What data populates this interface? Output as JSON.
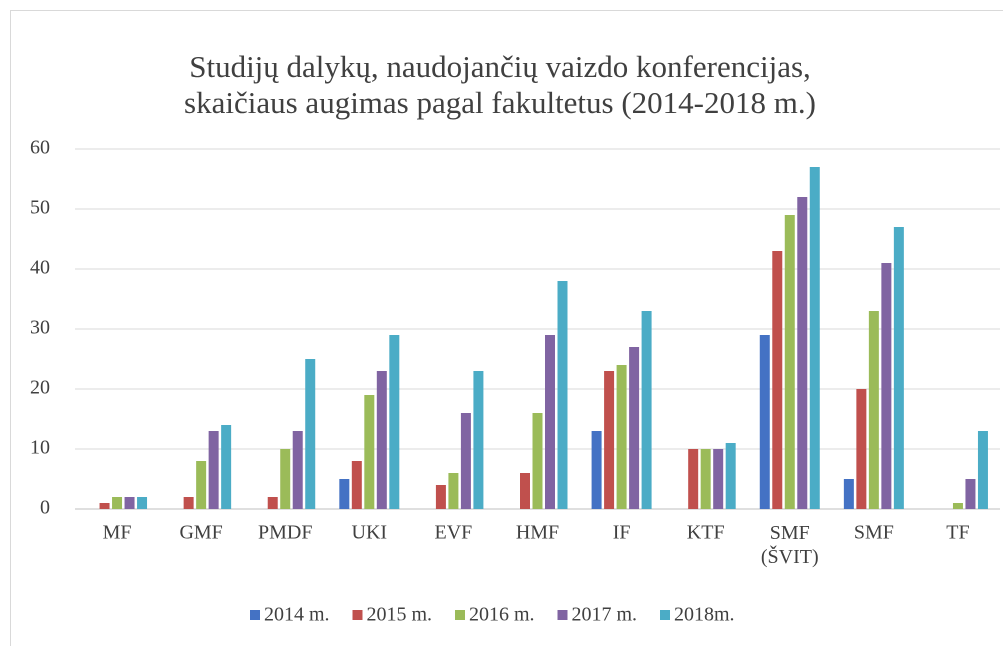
{
  "chart_data": {
    "type": "bar",
    "title": "Studijų dalykų, naudojančių vaizdo konferencijas,\nskaičiaus augimas pagal fakultetus (2014-2018 m.)",
    "categories": [
      "MF",
      "GMF",
      "PMDF",
      "UKI",
      "EVF",
      "HMF",
      "IF",
      "KTF",
      "SMF\n(ŠVIT)",
      "SMF",
      "TF"
    ],
    "series": [
      {
        "name": "2014 m.",
        "color": "#4472c4",
        "values": [
          0,
          0,
          0,
          5,
          0,
          0,
          13,
          0,
          29,
          5,
          0
        ]
      },
      {
        "name": "2015 m.",
        "color": "#c0504d",
        "values": [
          1,
          2,
          2,
          8,
          4,
          6,
          23,
          10,
          43,
          20,
          0
        ]
      },
      {
        "name": "2016 m.",
        "color": "#9bbb59",
        "values": [
          2,
          8,
          10,
          19,
          6,
          16,
          24,
          10,
          49,
          33,
          1
        ]
      },
      {
        "name": "2017 m.",
        "color": "#8064a2",
        "values": [
          2,
          13,
          13,
          23,
          16,
          29,
          27,
          10,
          52,
          41,
          5
        ]
      },
      {
        "name": "2018m.",
        "color": "#4bacc6",
        "values": [
          2,
          14,
          25,
          29,
          23,
          38,
          33,
          11,
          57,
          47,
          13
        ]
      }
    ],
    "ylim": [
      0,
      60
    ],
    "yticks": [
      0,
      10,
      20,
      30,
      40,
      50,
      60
    ],
    "grid": true,
    "legend": "bottom"
  }
}
